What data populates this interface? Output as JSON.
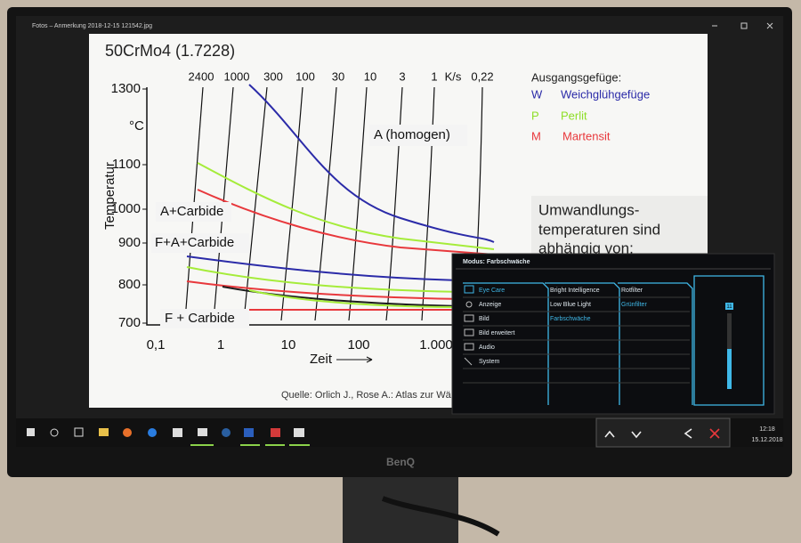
{
  "window": {
    "title": "Fotos – Anmerkung 2018-12-15 121542.jpg"
  },
  "slide": {
    "title": "50CrMo4 (1.7228)",
    "top_axis": [
      "2400",
      "1000",
      "300",
      "100",
      "30",
      "10",
      "3",
      "1",
      "K/s",
      "0,22"
    ],
    "y_unit": "°C",
    "y_label": "Temperatur",
    "y_ticks": [
      "1300",
      "1100",
      "1000",
      "900",
      "800",
      "700"
    ],
    "x_ticks": [
      "0,1",
      "1",
      "10",
      "100",
      "1.000"
    ],
    "x_label": "Zeit",
    "regions": [
      "A (homogen)",
      "A+Carbide",
      "F+A+Carbide",
      "F + Carbide"
    ],
    "legend_title": "Ausgangsgefüge:",
    "legend": [
      {
        "key": "W",
        "label": "Weichglühgefüge"
      },
      {
        "key": "P",
        "label": "Perlit"
      },
      {
        "key": "M",
        "label": "Martensit"
      }
    ],
    "note": [
      "Umwandlungs-",
      "temperaturen sind",
      "abhängig von:"
    ],
    "source": "Quelle: Orlich J., Rose A.: Atlas zur Wärm"
  },
  "osd": {
    "mode": "Modus: Farbschwäche",
    "menu": [
      "Eye Care",
      "Anzeige",
      "Bild",
      "Bild erweitert",
      "Audio",
      "System"
    ],
    "submenu": [
      "Bright Intelligence",
      "Low Blue Light",
      "Farbschwäche"
    ],
    "options": [
      "Rotfilter",
      "Grünfilter"
    ],
    "slider": "11"
  },
  "taskbar": {
    "time": "12:18",
    "date": "15.12.2018"
  },
  "brand": "BenQ"
}
